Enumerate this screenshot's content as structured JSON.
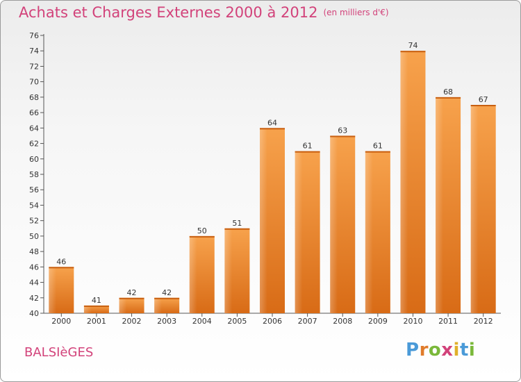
{
  "header": {
    "title": "Achats et Charges Externes 2000 à 2012",
    "subtitle": "(en milliers d'€)"
  },
  "footer": {
    "place": "BALSIèGES",
    "logo_letters": [
      {
        "ch": "P",
        "color": "#4a9ad8"
      },
      {
        "ch": "r",
        "color": "#e07b2a"
      },
      {
        "ch": "o",
        "color": "#7ab83a"
      },
      {
        "ch": "x",
        "color": "#d2427a"
      },
      {
        "ch": "i",
        "color": "#e0b02a"
      },
      {
        "ch": "t",
        "color": "#4a9ad8"
      },
      {
        "ch": "i",
        "color": "#7ab83a"
      }
    ]
  },
  "chart_data": {
    "type": "bar",
    "categories": [
      "2000",
      "2001",
      "2002",
      "2003",
      "2004",
      "2005",
      "2006",
      "2007",
      "2008",
      "2009",
      "2010",
      "2011",
      "2012"
    ],
    "values": [
      46,
      41,
      42,
      42,
      50,
      51,
      64,
      61,
      63,
      61,
      74,
      68,
      67
    ],
    "ylim": [
      40,
      76
    ],
    "ytick_step": 2,
    "grid": false,
    "bar_color": "#f0963a"
  }
}
